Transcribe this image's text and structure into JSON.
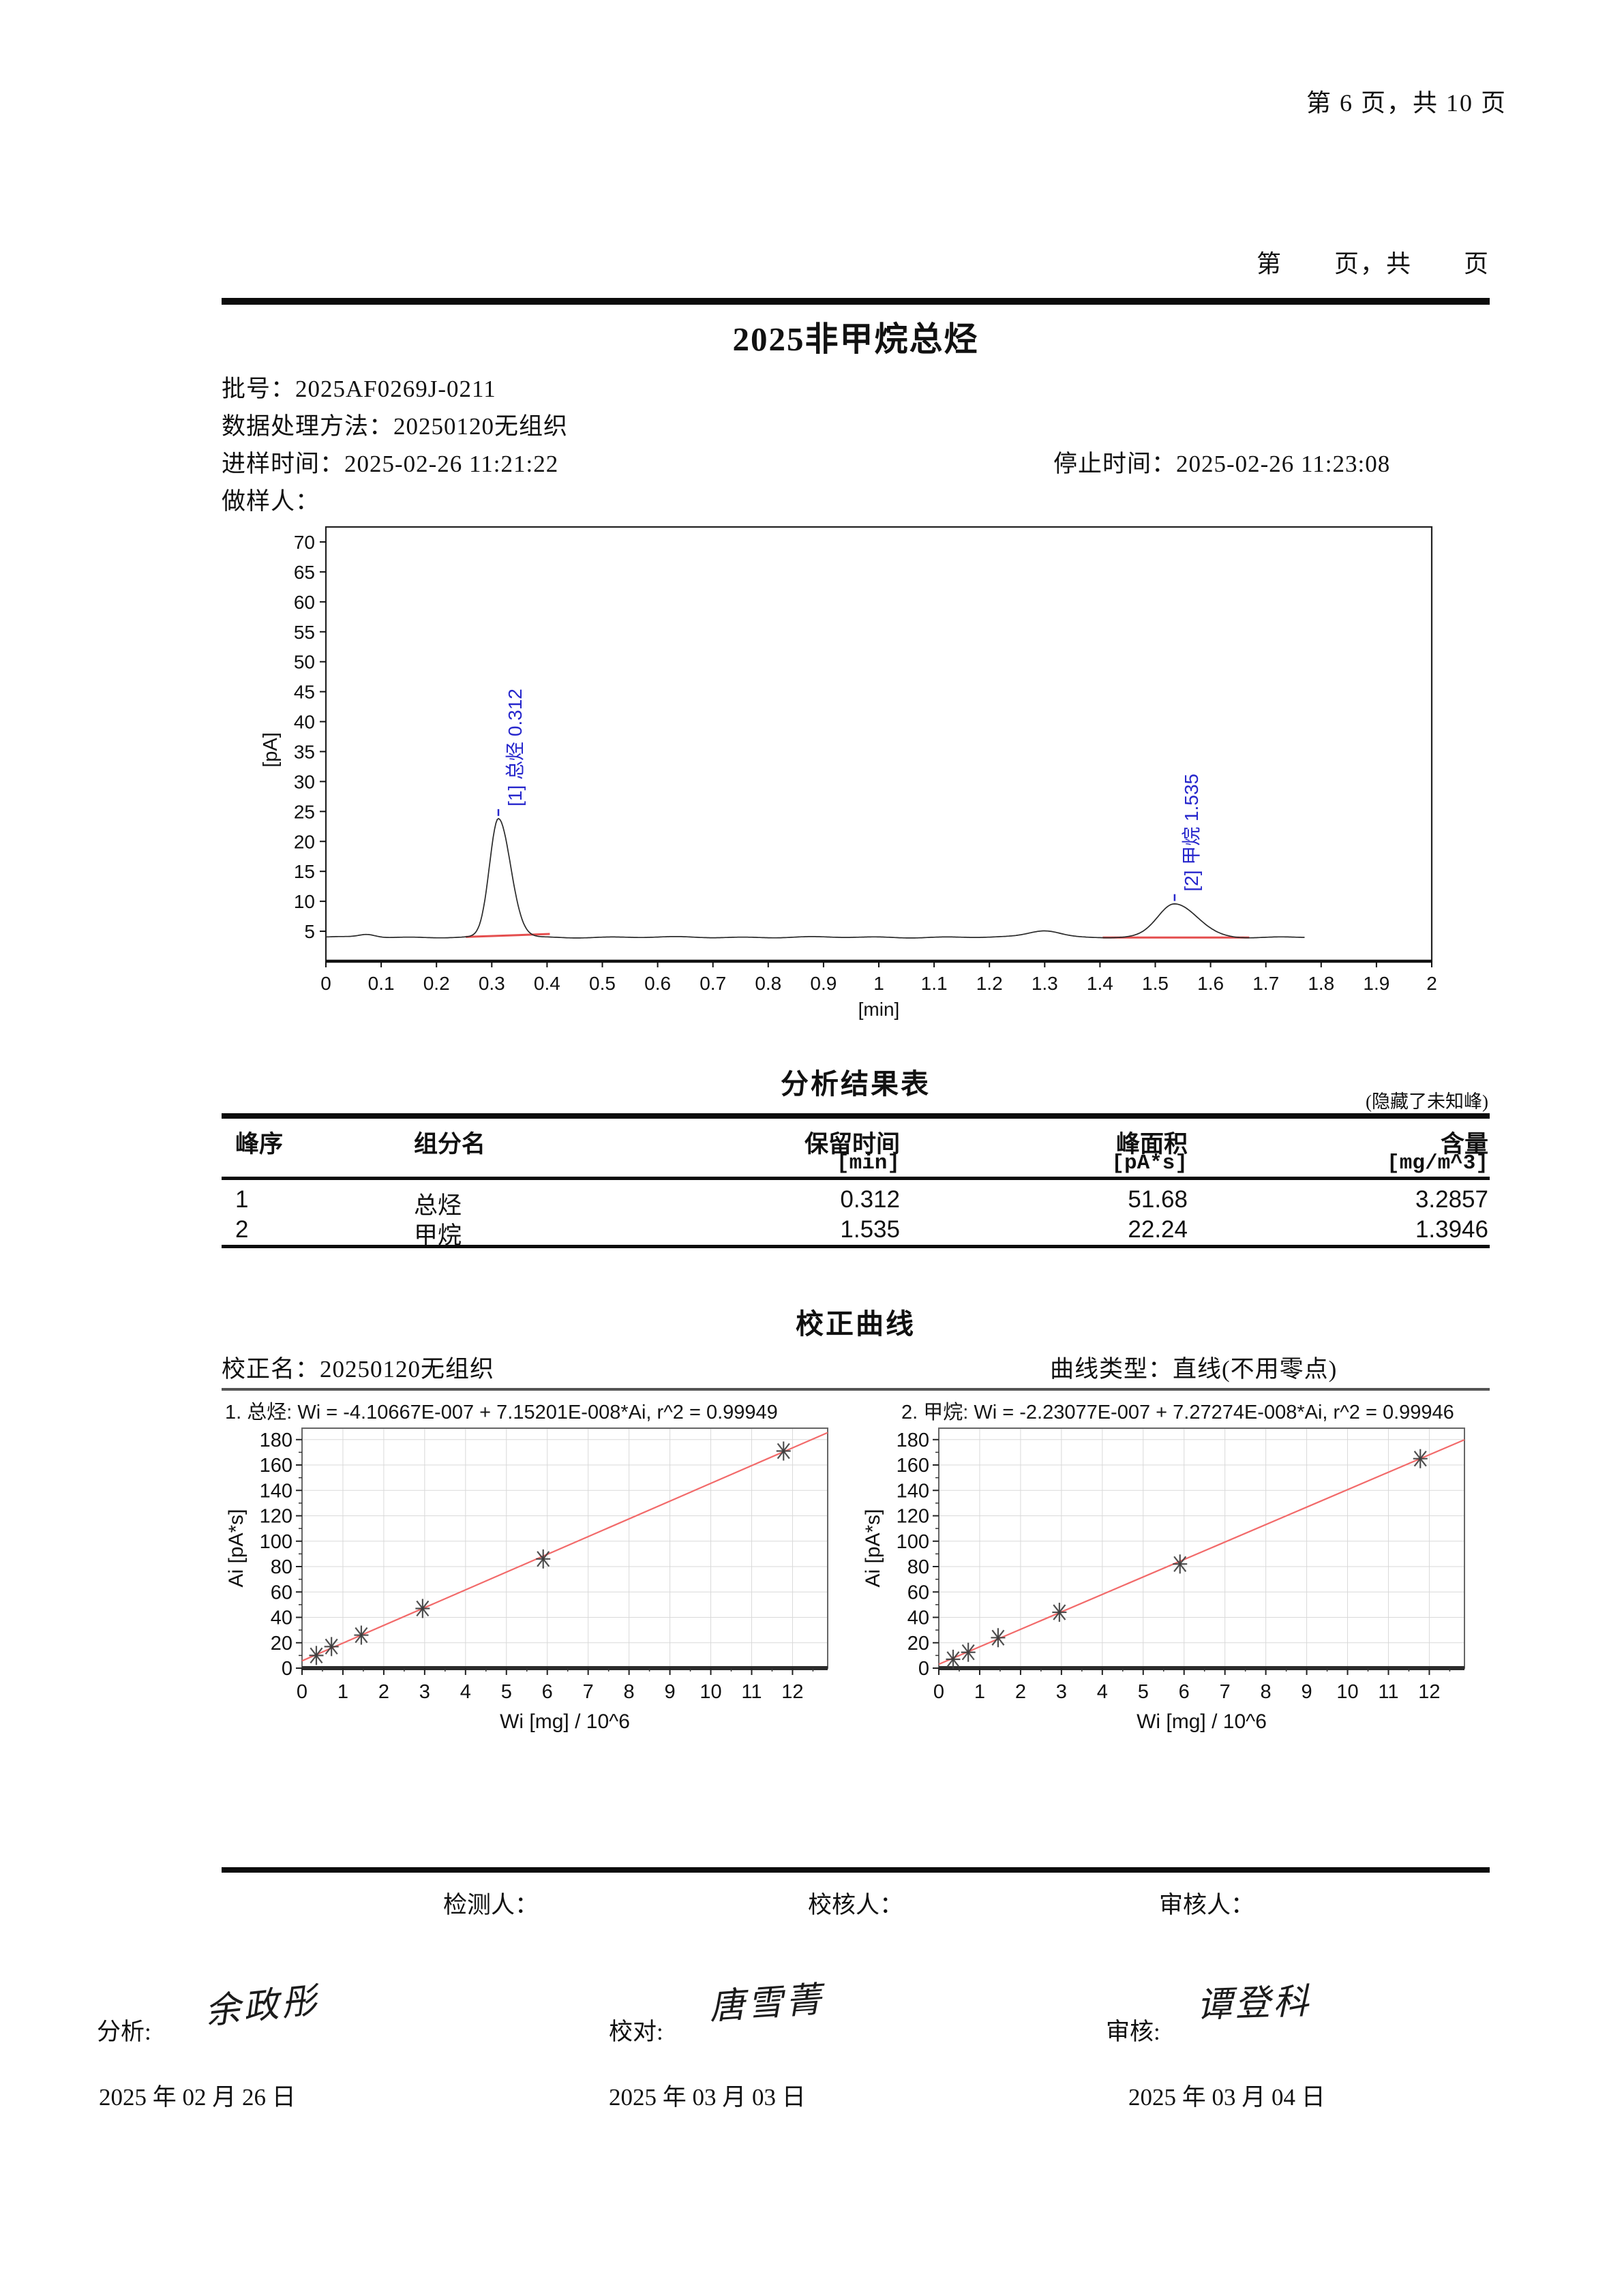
{
  "doc": {
    "page_header": "第 6 页，共 10 页",
    "header_template": "第　　页，共　　页",
    "title": "2025非甲烷总烃",
    "meta": {
      "batch": "批号：2025AF0269J-0211",
      "method": "数据处理方法：20250120无组织",
      "inject_time": "进样时间：2025-02-26 11:21:22",
      "stop_time": "停止时间：2025-02-26 11:23:08",
      "sampler": "做样人："
    },
    "result_table": {
      "title": "分析结果表",
      "note": "(隐藏了未知峰)",
      "col_headers": [
        "峰序",
        "组分名",
        "保留时间",
        "峰面积",
        "含量"
      ],
      "col_units": [
        "",
        "",
        "[min]",
        "[pA*s]",
        "[mg/m^3]"
      ],
      "rows": [
        {
          "no": "1",
          "name": "总烃",
          "rt": "0.312",
          "area": "51.68",
          "conc": "3.2857"
        },
        {
          "no": "2",
          "name": "甲烷",
          "rt": "1.535",
          "area": "22.24",
          "conc": "1.3946"
        }
      ]
    },
    "calibration": {
      "title": "校正曲线",
      "name_line": "校正名：20250120无组织",
      "type_line": "曲线类型：直线(不用零点)"
    },
    "footer": {
      "tester": "检测人：",
      "checker": "校核人：",
      "reviewer": "审核人：",
      "analyst_label": "分析:",
      "analyst_sig": "余政彤",
      "analyst_date": "2025 年 02 月 26 日",
      "proof_label": "校对:",
      "proof_sig": "唐雪菁",
      "proof_date": "2025 年 03 月 03 日",
      "review_label": "审核:",
      "review_sig": "谭登科",
      "review_date": "2025 年 03 月 04 日"
    }
  },
  "chart_data": [
    {
      "type": "line",
      "name": "chromatogram",
      "xlabel": "[min]",
      "ylabel": "[pA]",
      "xlim": [
        0,
        2
      ],
      "ylim": [
        0,
        72.5
      ],
      "xticks": [
        0,
        0.1,
        0.2,
        0.3,
        0.4,
        0.5,
        0.6,
        0.7,
        0.8,
        0.9,
        1,
        1.1,
        1.2,
        1.3,
        1.4,
        1.5,
        1.6,
        1.7,
        1.8,
        1.9,
        2
      ],
      "xtick_labels": [
        "0",
        "0.1",
        "0.2",
        "0.3",
        "0.4",
        "0.5",
        "0.6",
        "0.7",
        "0.8",
        "0.9",
        "1",
        "1.1",
        "1.2",
        "1.3",
        "1.4",
        "1.5",
        "1.6",
        "1.7",
        "1.8",
        "1.9",
        "2"
      ],
      "yticks": [
        5,
        10,
        15,
        20,
        25,
        30,
        35,
        40,
        45,
        50,
        55,
        60,
        65,
        70
      ],
      "baseline_pA": 4.0,
      "trace_end_min": 1.77,
      "peaks": [
        {
          "id": 1,
          "name": "总烃",
          "retention_min": 0.312,
          "apex_pA": 23.8,
          "sigma_l": 0.016,
          "sigma_r": 0.022,
          "label": "[1] 总烃 0.312"
        },
        {
          "id": 2,
          "name": "甲烷",
          "retention_min": 1.535,
          "apex_pA": 9.6,
          "sigma_l": 0.03,
          "sigma_r": 0.04,
          "label": "[2] 甲烷 1.535"
        }
      ],
      "minor_bumps": [
        {
          "t": 0.075,
          "h": 0.5,
          "sigma": 0.015
        },
        {
          "t": 1.3,
          "h": 1.15,
          "sigma": 0.028
        }
      ],
      "integration_baselines": [
        {
          "from": 0.253,
          "to": 0.405,
          "pA_from": 4.05,
          "pA_to": 4.55
        },
        {
          "from": 1.405,
          "to": 1.67,
          "pA_from": 3.95,
          "pA_to": 3.95
        }
      ],
      "trace_color": "#2a2a2a",
      "baseline_color": "#e03030",
      "label_color": "#2626cc"
    },
    {
      "type": "scatter",
      "name": "calibration-总烃",
      "equation": "1. 总烃:  Wi = -4.10667E-007 + 7.15201E-008*Ai,  r^2 = 0.99949",
      "xlabel": "Wi [mg] / 10^6",
      "ylabel": "Ai [pA*s]",
      "xlim": [
        0,
        12.86
      ],
      "ylim": [
        0,
        189
      ],
      "xticks": [
        0,
        1,
        2,
        3,
        4,
        5,
        6,
        7,
        8,
        9,
        10,
        11,
        12
      ],
      "yticks": [
        0,
        20,
        40,
        60,
        80,
        100,
        120,
        140,
        160,
        180
      ],
      "points_x": [
        0.35,
        0.72,
        1.45,
        2.95,
        5.9,
        11.78
      ],
      "points_y": [
        10,
        17,
        26,
        47,
        86,
        171
      ],
      "fit_line": {
        "intercept": 5.74,
        "slope": 13.98
      },
      "line_color": "#f26a6a",
      "marker_color": "#3d3d3d",
      "grid_color": "#d9d9d9"
    },
    {
      "type": "scatter",
      "name": "calibration-甲烷",
      "equation": "2. 甲烷:  Wi = -2.23077E-007 + 7.27274E-008*Ai,  r^2 = 0.99946",
      "xlabel": "Wi [mg] / 10^6",
      "ylabel": "Ai [pA*s]",
      "xlim": [
        0,
        12.86
      ],
      "ylim": [
        0,
        189
      ],
      "xticks": [
        0,
        1,
        2,
        3,
        4,
        5,
        6,
        7,
        8,
        9,
        10,
        11,
        12
      ],
      "yticks": [
        0,
        20,
        40,
        60,
        80,
        100,
        120,
        140,
        160,
        180
      ],
      "points_x": [
        0.35,
        0.72,
        1.45,
        2.95,
        5.9,
        11.78
      ],
      "points_y": [
        7,
        12.5,
        24,
        44,
        82,
        165
      ],
      "fit_line": {
        "intercept": 3.07,
        "slope": 13.75
      },
      "line_color": "#f26a6a",
      "marker_color": "#3d3d3d",
      "grid_color": "#d9d9d9"
    }
  ]
}
